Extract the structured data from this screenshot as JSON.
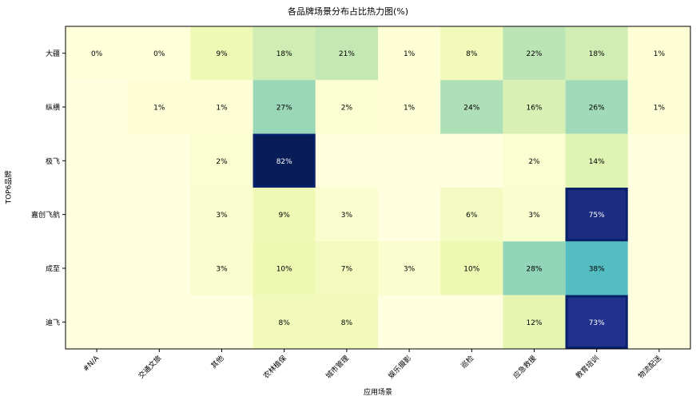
{
  "chart_data": {
    "type": "heatmap",
    "title": "各品牌场景分布占比热力图(%)",
    "xlabel": "应用场景",
    "ylabel": "TOP6品牌",
    "colormap": "YlGnBu",
    "x_categories": [
      "#N/A",
      "交通文旅",
      "其他",
      "农林植保",
      "城市管理",
      "娱乐摄影",
      "巡检",
      "应急救援",
      "教育培训",
      "物流配送"
    ],
    "y_categories": [
      "大疆",
      "纵横",
      "极飞",
      "嘉创飞航",
      "成至",
      "迪飞"
    ],
    "values": [
      [
        0,
        0,
        9,
        18,
        21,
        1,
        8,
        22,
        18,
        1
      ],
      [
        null,
        1,
        1,
        27,
        2,
        1,
        24,
        16,
        26,
        1
      ],
      [
        null,
        null,
        2,
        82,
        null,
        null,
        null,
        2,
        14,
        null
      ],
      [
        null,
        null,
        3,
        9,
        3,
        null,
        6,
        3,
        75,
        null
      ],
      [
        null,
        null,
        3,
        10,
        7,
        3,
        10,
        28,
        38,
        null
      ],
      [
        null,
        null,
        null,
        8,
        8,
        null,
        null,
        12,
        73,
        null
      ]
    ],
    "highlight_border_color": "#08216b"
  }
}
